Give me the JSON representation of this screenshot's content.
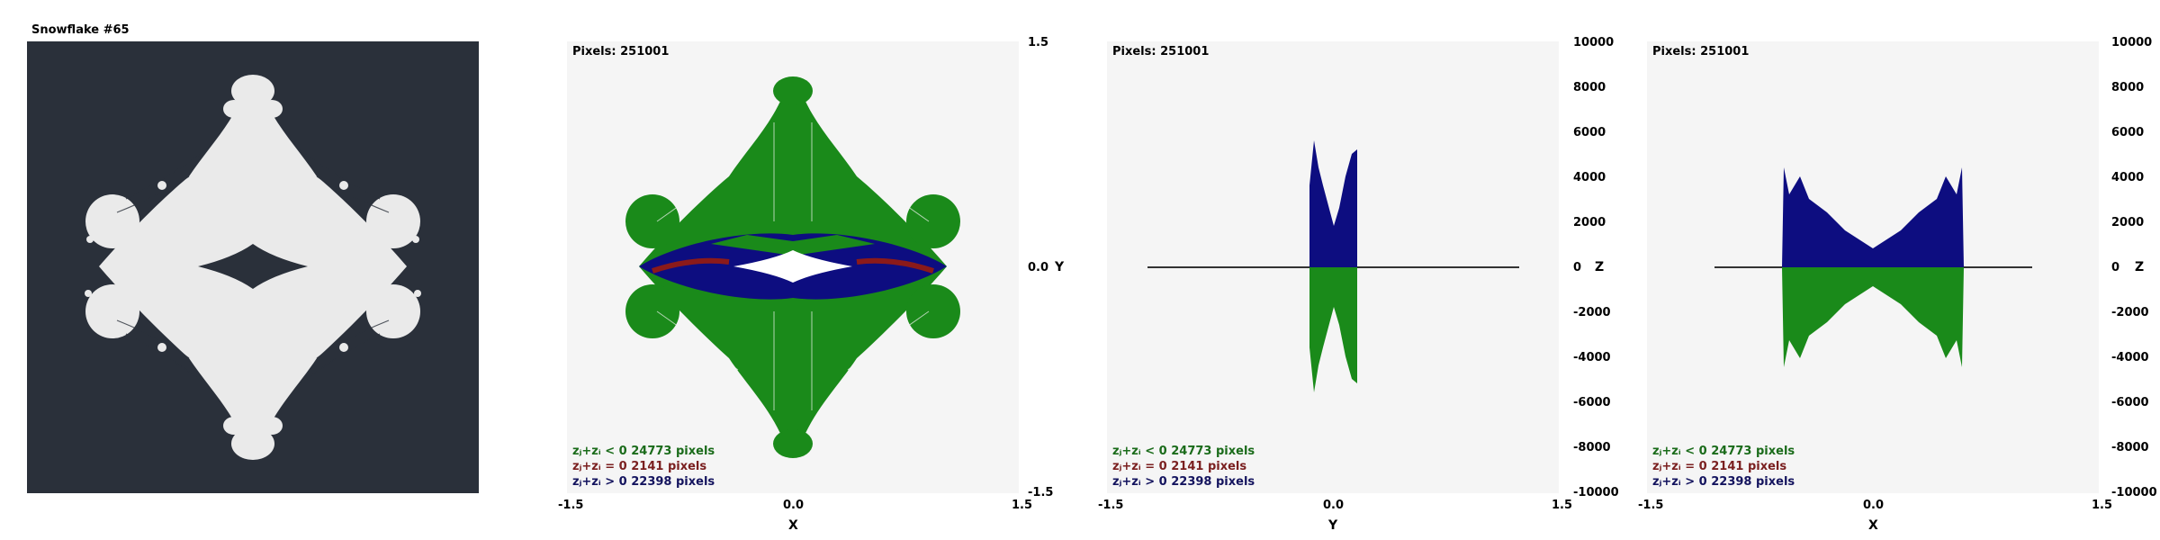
{
  "window_title": "Snowflake #65",
  "colors": {
    "background_dark": "#2a303a",
    "snowflake": "#eaeaea",
    "plot_bg": "#f5f5f5",
    "negative_green": "#1a8a1a",
    "zero_red": "#8b1a1a",
    "positive_blue": "#0d0d80"
  },
  "panels": [
    {
      "pixels_label": "Pixels: 251001",
      "legend": {
        "neg": "zⱼ+zᵢ < 0  24773 pixels",
        "zero": "zⱼ+zᵢ = 0  2141 pixels",
        "pos": "zⱼ+zᵢ > 0  22398 pixels"
      },
      "x_ticks": [
        "-1.5",
        "0.0",
        "1.5"
      ],
      "x_label": "X",
      "right_ticks": [
        "1.5",
        "0.0",
        "-1.5"
      ],
      "right_axis_label": "Y"
    },
    {
      "pixels_label": "Pixels: 251001",
      "legend": {
        "neg": "zⱼ+zᵢ < 0  24773 pixels",
        "zero": "zⱼ+zᵢ = 0  2141 pixels",
        "pos": "zⱼ+zᵢ > 0  22398 pixels"
      },
      "x_ticks": [
        "-1.5",
        "0.0",
        "1.5"
      ],
      "x_label": "Y",
      "right_ticks": [
        "10000",
        "8000",
        "6000",
        "4000",
        "2000",
        "0",
        "-2000",
        "-4000",
        "-6000",
        "-8000",
        "-10000"
      ],
      "right_axis_label": "Z"
    },
    {
      "pixels_label": "Pixels: 251001",
      "legend": {
        "neg": "zⱼ+zᵢ < 0  24773 pixels",
        "zero": "zⱼ+zᵢ = 0  2141 pixels",
        "pos": "zⱼ+zᵢ > 0  22398 pixels"
      },
      "x_ticks": [
        "-1.5",
        "0.0",
        "1.5"
      ],
      "x_label": "X",
      "right_ticks": [
        "10000",
        "8000",
        "6000",
        "4000",
        "2000",
        "0",
        "-2000",
        "-4000",
        "-6000",
        "-8000",
        "-10000"
      ],
      "right_axis_label": "Z"
    }
  ]
}
